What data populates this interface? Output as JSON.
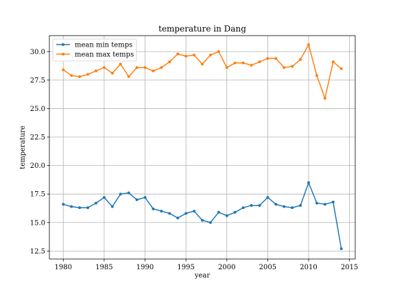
{
  "chart_data": {
    "type": "line",
    "title": "temperature in Dang",
    "xlabel": "year",
    "ylabel": "temperature",
    "xlim": [
      1978.3,
      2015.7
    ],
    "ylim": [
      11.8,
      31.4
    ],
    "xticks": [
      1980,
      1985,
      1990,
      1995,
      2000,
      2005,
      2010,
      2015
    ],
    "yticks": [
      12.5,
      15.0,
      17.5,
      20.0,
      22.5,
      25.0,
      27.5,
      30.0
    ],
    "ytick_labels": [
      "12.5",
      "15.0",
      "17.5",
      "20.0",
      "22.5",
      "25.0",
      "27.5",
      "30.0"
    ],
    "grid": true,
    "legend_position": "upper-left",
    "x": [
      1980,
      1981,
      1982,
      1983,
      1984,
      1985,
      1986,
      1987,
      1988,
      1989,
      1990,
      1991,
      1992,
      1993,
      1994,
      1995,
      1996,
      1997,
      1998,
      1999,
      2000,
      2001,
      2002,
      2003,
      2004,
      2005,
      2006,
      2007,
      2008,
      2009,
      2010,
      2011,
      2012,
      2013,
      2014
    ],
    "series": [
      {
        "name": "mean min temps",
        "color": "#1f77b4",
        "values": [
          16.6,
          16.4,
          16.3,
          16.3,
          16.7,
          17.2,
          16.4,
          17.5,
          17.6,
          17.0,
          17.2,
          16.2,
          16.0,
          15.8,
          15.4,
          15.8,
          16.0,
          15.2,
          15.0,
          15.9,
          15.6,
          15.9,
          16.3,
          16.5,
          16.5,
          17.2,
          16.6,
          16.4,
          16.3,
          16.5,
          18.5,
          16.7,
          16.6,
          16.8,
          12.7
        ]
      },
      {
        "name": "mean max temps",
        "color": "#ff7f0e",
        "values": [
          28.4,
          27.9,
          27.8,
          28.0,
          28.3,
          28.6,
          28.1,
          28.9,
          27.8,
          28.6,
          28.6,
          28.3,
          28.6,
          29.1,
          29.8,
          29.6,
          29.7,
          28.9,
          29.7,
          30.0,
          28.6,
          29.0,
          29.0,
          28.8,
          29.1,
          29.4,
          29.4,
          28.6,
          28.7,
          29.3,
          30.6,
          27.9,
          25.9,
          29.1,
          28.5
        ]
      }
    ]
  }
}
